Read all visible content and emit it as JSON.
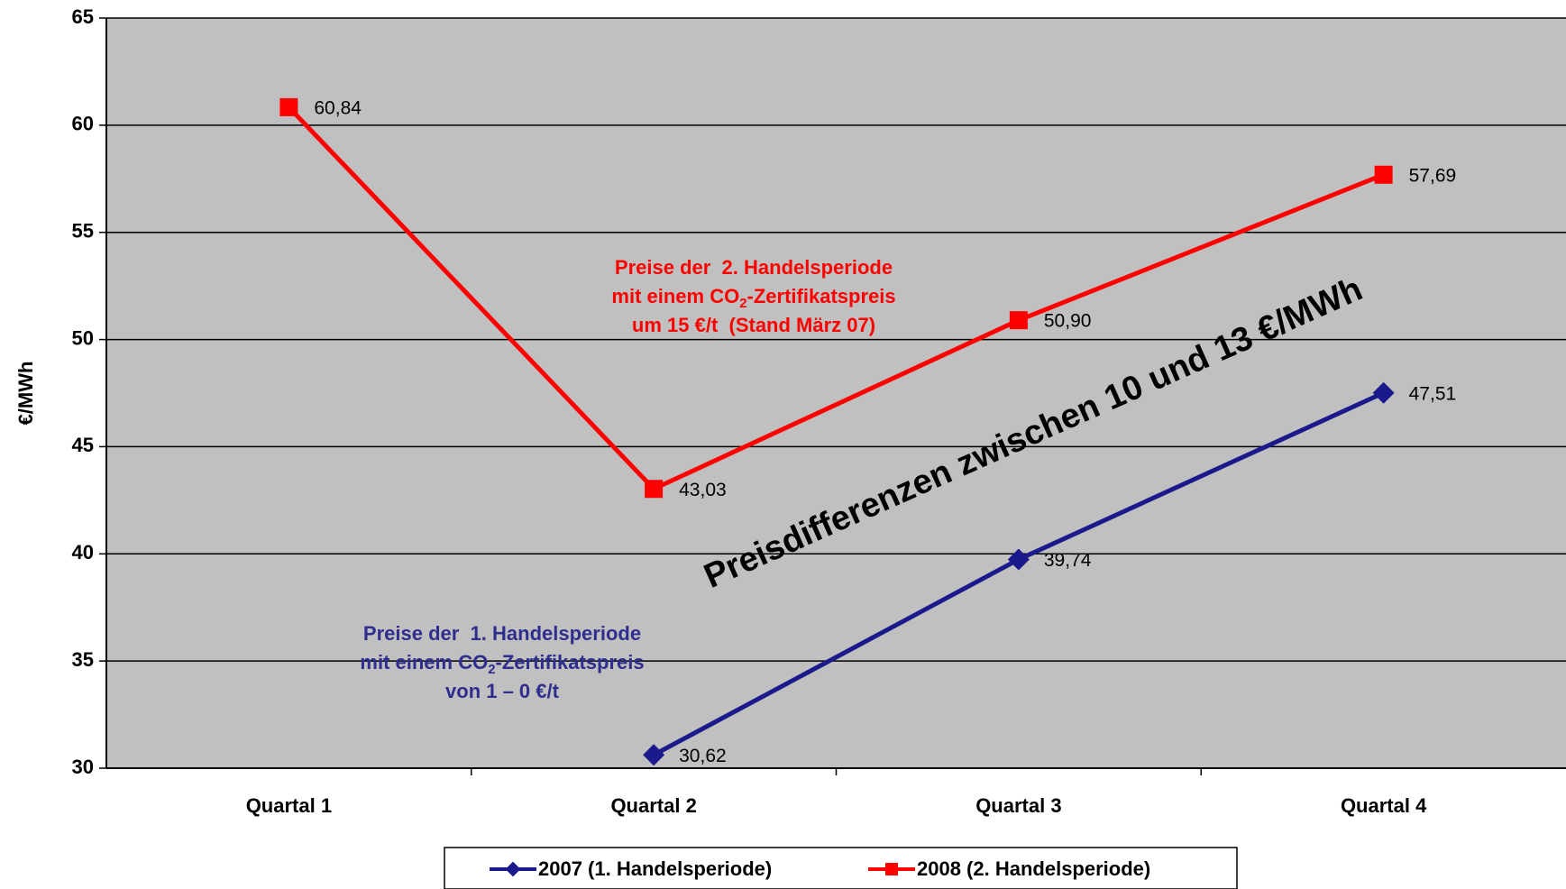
{
  "chart_data": {
    "type": "line",
    "ylabel": "€/MWh",
    "categories": [
      "Quartal 1",
      "Quartal 2",
      "Quartal 3",
      "Quartal 4"
    ],
    "series": [
      {
        "name": "2007 (1. Handelsperiode)",
        "color": "#1a1a8c",
        "marker": "diamond",
        "values": [
          null,
          30.62,
          39.74,
          47.51
        ],
        "value_labels": [
          null,
          "30,62",
          "39,74",
          "47,51"
        ]
      },
      {
        "name": "2008 (2. Handelsperiode)",
        "color": "#ff0000",
        "marker": "square",
        "values": [
          60.84,
          43.03,
          50.9,
          57.69
        ],
        "value_labels": [
          "60,84",
          "43,03",
          "50,90",
          "57,69"
        ]
      }
    ],
    "ylim": [
      30,
      65
    ],
    "yticks": [
      30,
      35,
      40,
      45,
      50,
      55,
      60,
      65
    ],
    "grid": true,
    "legend": "bottom",
    "background": "#c0c0c0",
    "annotations": [
      {
        "color": "#ff0000",
        "lines": [
          [
            {
              "text": "Preise der  2. Handelsperiode"
            }
          ],
          [
            {
              "text": "mit einem CO"
            },
            {
              "text": "2",
              "sub": true
            },
            {
              "text": "-Zertifikatspreis"
            }
          ],
          [
            {
              "text": "um 15 €/t  (Stand März 07)"
            }
          ]
        ]
      },
      {
        "color": "#2e2e8f",
        "lines": [
          [
            {
              "text": "Preise der  1. Handelsperiode"
            }
          ],
          [
            {
              "text": "mit einem CO"
            },
            {
              "text": "2",
              "sub": true
            },
            {
              "text": "-Zertifikatspreis"
            }
          ],
          [
            {
              "text": "von 1 – 0 €/t"
            }
          ]
        ]
      }
    ],
    "note": "Preisdifferenzen zwischen 10 und 13 €/MWh"
  }
}
